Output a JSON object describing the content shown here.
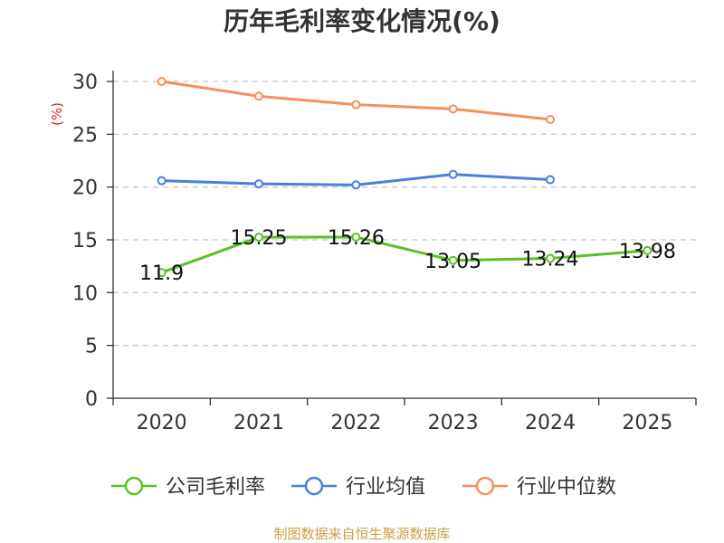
{
  "chart_data": {
    "type": "line",
    "title": "历年毛利率变化情况(%)",
    "ylabel": "(%)",
    "xlabel": "",
    "categories": [
      "2020",
      "2021",
      "2022",
      "2023",
      "2024",
      "2025"
    ],
    "ylim": [
      0,
      30
    ],
    "yticks": [
      0,
      5,
      10,
      15,
      20,
      25,
      30
    ],
    "grid": true,
    "legend_position": "bottom",
    "series": [
      {
        "name": "公司毛利率",
        "color": "#5ac126",
        "values": [
          11.9,
          15.25,
          15.26,
          13.05,
          13.24,
          13.98
        ],
        "labels": [
          "11.9",
          "15.25",
          "15.26",
          "13.05",
          "13.24",
          "13.98"
        ]
      },
      {
        "name": "行业均值",
        "color": "#4a7fdc",
        "values": [
          20.6,
          20.3,
          20.2,
          21.2,
          20.7,
          null
        ]
      },
      {
        "name": "行业中位数",
        "color": "#f5905a",
        "values": [
          30.0,
          28.6,
          27.8,
          27.4,
          26.4,
          null
        ]
      }
    ]
  },
  "source": "制图数据来自恒生聚源数据库"
}
